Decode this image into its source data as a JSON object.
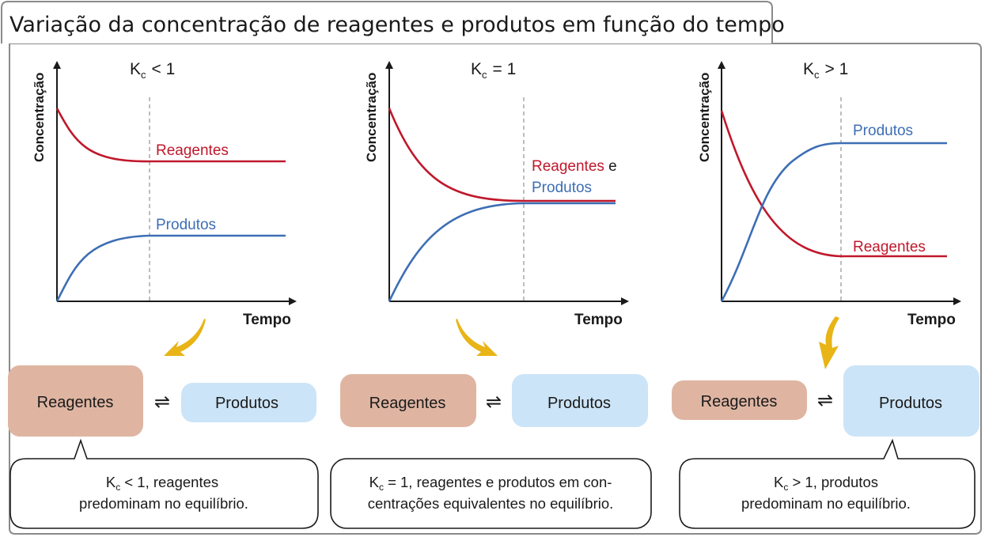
{
  "title": "Variação da concentração de reagentes e produtos em função do tempo",
  "axis": {
    "y_label": "Concentração",
    "x_label": "Tempo"
  },
  "colors": {
    "reagentes": "#c0182b",
    "produtos": "#3d6eb4",
    "reagentes_box": "#dfb5a2",
    "produtos_box": "#cce4f7",
    "arrow": "#e8b416"
  },
  "panels": [
    {
      "kc": {
        "symbol": "K",
        "sub": "c",
        "relation": "< 1"
      },
      "curve_labels": {
        "reagentes": "Reagentes",
        "produtos": "Produtos"
      },
      "reagentes_box": "Reagentes",
      "produtos_box": "Produtos",
      "note": {
        "line1": "K",
        "line1_sub": "c",
        "line1_rest": " < 1, reagentes",
        "line2": "predominam no equilíbrio."
      }
    },
    {
      "kc": {
        "symbol": "K",
        "sub": "c",
        "relation": "= 1"
      },
      "curve_labels": {
        "reagentes": "Reagentes",
        "conjunction": " e",
        "produtos": "Produtos"
      },
      "reagentes_box": "Reagentes",
      "produtos_box": "Produtos",
      "note": {
        "line1": "K",
        "line1_sub": "c",
        "line1_rest": " = 1, reagentes e produtos em con-",
        "line2": "centrações equivalentes no equilíbrio."
      }
    },
    {
      "kc": {
        "symbol": "K",
        "sub": "c",
        "relation": "> 1"
      },
      "curve_labels": {
        "reagentes": "Reagentes",
        "produtos": "Produtos"
      },
      "reagentes_box": "Reagentes",
      "produtos_box": "Produtos",
      "note": {
        "line1": "K",
        "line1_sub": "c",
        "line1_rest": " > 1, produtos",
        "line2": "predominam no equilíbrio."
      }
    }
  ]
}
